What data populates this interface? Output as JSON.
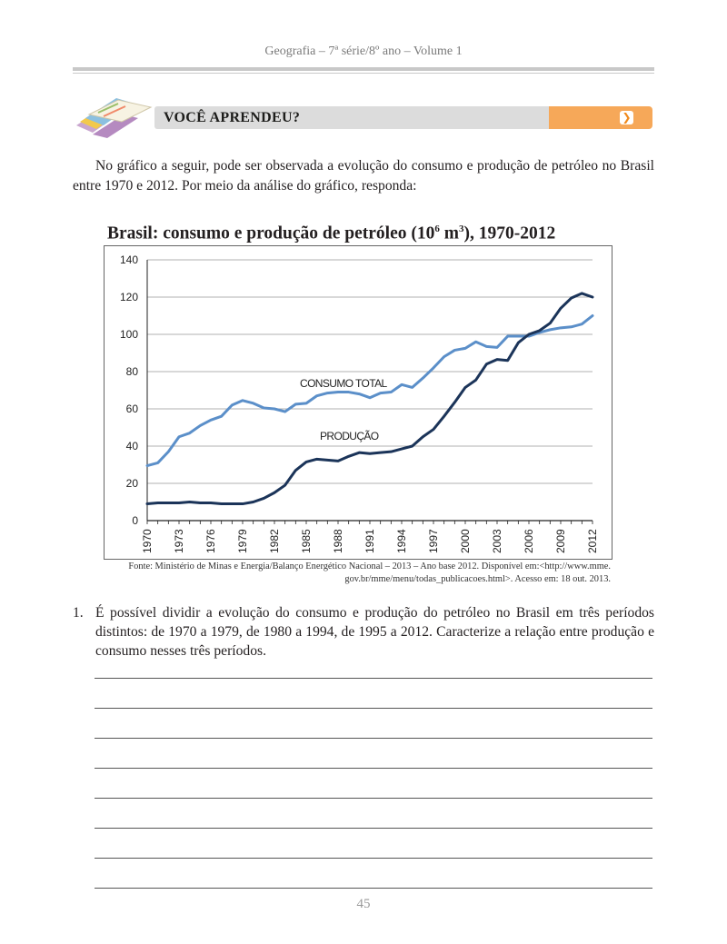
{
  "header": {
    "running_head": "Geografia – 7ª série/8º ano – Volume 1"
  },
  "banner": {
    "label": "VOCÊ APRENDEU?",
    "accent_color": "#f6a859",
    "arrow_icon": "chevron-right-icon"
  },
  "intro": "No gráfico a seguir, pode ser observada a evolução do consumo e produção de petróleo no Brasil entre 1970 e 2012. Por meio da análise do gráfico, responda:",
  "chart_title": {
    "main": "Brasil: consumo e produção de petróleo (10",
    "sup1": "6",
    "mid": " m",
    "sup2": "3",
    "end": "), 1970-2012"
  },
  "chart_data": {
    "type": "line",
    "title": "Brasil: consumo e produção de petróleo (10⁶ m³), 1970-2012",
    "x": [
      1970,
      1971,
      1972,
      1973,
      1974,
      1975,
      1976,
      1977,
      1978,
      1979,
      1980,
      1981,
      1982,
      1983,
      1984,
      1985,
      1986,
      1987,
      1988,
      1989,
      1990,
      1991,
      1992,
      1993,
      1994,
      1995,
      1996,
      1997,
      1998,
      1999,
      2000,
      2001,
      2002,
      2003,
      2004,
      2005,
      2006,
      2007,
      2008,
      2009,
      2010,
      2011,
      2012
    ],
    "x_tick_labels": [
      "1970",
      "1973",
      "1976",
      "1979",
      "1982",
      "1985",
      "1988",
      "1991",
      "1994",
      "1997",
      "2000",
      "2003",
      "2006",
      "2009",
      "2012"
    ],
    "ylim": [
      0,
      140
    ],
    "y_ticks": [
      "0",
      "20",
      "40",
      "60",
      "80",
      "100",
      "120",
      "140"
    ],
    "grid": "horizontal",
    "series": [
      {
        "name": "CONSUMO TOTAL",
        "color": "#5b8fc9",
        "values": [
          29.5,
          31,
          37,
          45,
          47,
          51,
          54,
          56,
          62,
          64.5,
          63,
          60.5,
          60,
          58.5,
          62.5,
          63,
          67,
          68.5,
          69,
          69,
          68,
          66,
          68.5,
          69,
          73,
          71.5,
          76.5,
          82,
          88,
          91.5,
          92.5,
          96,
          93.5,
          93,
          99,
          99,
          99,
          101,
          102.5,
          103.5,
          104,
          105.5,
          110
        ]
      },
      {
        "name": "PRODUÇÃO",
        "color": "#1b3459",
        "values": [
          9,
          9.5,
          9.5,
          9.5,
          10,
          9.5,
          9.5,
          9,
          9,
          9,
          10,
          12,
          15,
          19,
          27,
          31.5,
          33,
          32.5,
          32,
          34.5,
          36.5,
          36,
          36.5,
          37,
          38.5,
          40,
          45,
          49,
          56,
          63.5,
          71.5,
          75.5,
          84,
          86.5,
          86,
          95.5,
          100,
          102,
          106,
          114,
          119.5,
          122,
          120
        ]
      }
    ]
  },
  "source": "Fonte: Ministério de Minas e Energia/Balanço Energético Nacional – 2013 – Ano base 2012. Disponível em:<http://www.mme. gov.br/mme/menu/todas_publicacoes.html>. Acesso em: 18 out. 2013.",
  "question": {
    "number": "1.",
    "text": "É possível dividir a evolução do consumo e produção do petróleo no Brasil em três períodos distintos: de 1970 a 1979, de 1980 a 1994, de 1995 a 2012. Caracterize a relação entre produção e consumo nesses três períodos."
  },
  "page_number": "45"
}
